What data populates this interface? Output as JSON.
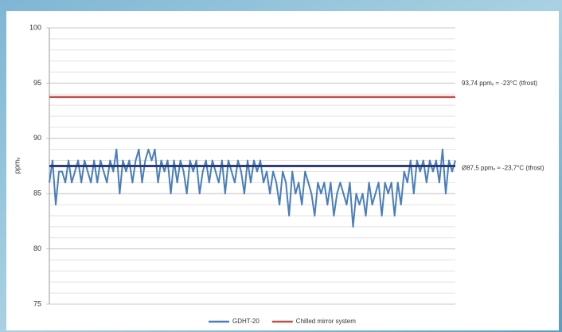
{
  "chart_data": {
    "type": "line",
    "y_label": "ppmᵥ",
    "ylim": [
      75,
      100
    ],
    "yticks": [
      75,
      80,
      85,
      90,
      95,
      100
    ],
    "grid": true,
    "y_minor_grid": 1,
    "legend": "bottom",
    "series": [
      {
        "name": "GDHT-20",
        "color": "#4a7ebb",
        "values": [
          86,
          88,
          84,
          87,
          87,
          86,
          88,
          86,
          87,
          88,
          86,
          88,
          87,
          86,
          88,
          86,
          88,
          87,
          86,
          88,
          87,
          89,
          85,
          88,
          87,
          88,
          86,
          88,
          89,
          86,
          88,
          89,
          88,
          89,
          86,
          88,
          87,
          88,
          85,
          88,
          86,
          88,
          87,
          85,
          88,
          87,
          88,
          85,
          87,
          88,
          86,
          88,
          87,
          86,
          88,
          85,
          88,
          87,
          86,
          88,
          87,
          85,
          88,
          86,
          88,
          87,
          88,
          86,
          87,
          85,
          87,
          86,
          84,
          87,
          86,
          83,
          87,
          85,
          86,
          84,
          87,
          86,
          85,
          83,
          86,
          85,
          86,
          84,
          86,
          83,
          85,
          86,
          85,
          84,
          86,
          82,
          85,
          84,
          85,
          83,
          86,
          84,
          85,
          86,
          83,
          86,
          85,
          86,
          83,
          86,
          84,
          87,
          86,
          88,
          85,
          88,
          87,
          88,
          86,
          88,
          87,
          88,
          86,
          89,
          85,
          88,
          87,
          88
        ]
      }
    ],
    "reference_lines": [
      {
        "name": "Chilled mirror system",
        "value": 93.74,
        "color": "#c0504d",
        "label": "93,74 ppmᵥ ≈ -23°C (tfrost)"
      },
      {
        "value": 87.5,
        "color": "#1f2d6b",
        "label": "Ø87,5 ppmᵥ ≈ -23,7°C (tfrost)"
      }
    ]
  }
}
